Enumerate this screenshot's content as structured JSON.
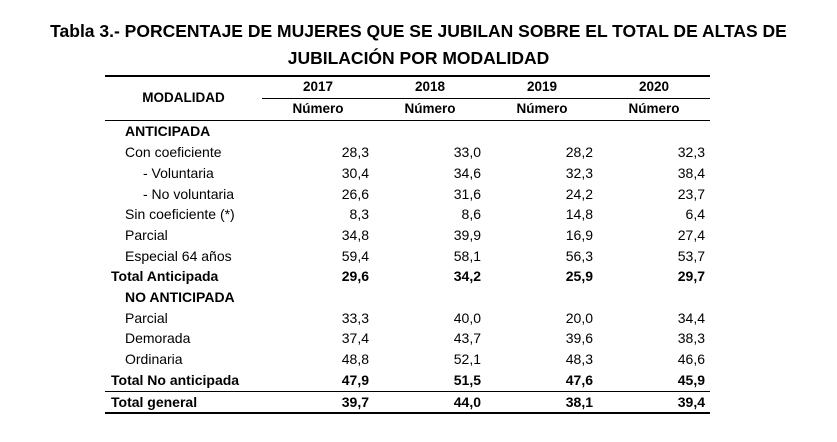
{
  "title_line1": "Tabla 3.- PORCENTAJE DE MUJERES QUE SE JUBILAN SOBRE EL TOTAL DE ALTAS DE",
  "title_line2": "JUBILACIÓN POR MODALIDAD",
  "header": {
    "modalidad": "MODALIDAD",
    "years": [
      "2017",
      "2018",
      "2019",
      "2020"
    ],
    "unit": "Número"
  },
  "rows": [
    {
      "label": "ANTICIPADA",
      "type": "section",
      "values": []
    },
    {
      "label": "Con coeficiente",
      "type": "i1",
      "values": [
        "28,3",
        "33,0",
        "28,2",
        "32,3"
      ]
    },
    {
      "label": "- Voluntaria",
      "type": "i2",
      "values": [
        "30,4",
        "34,6",
        "32,3",
        "38,4"
      ]
    },
    {
      "label": "- No voluntaria",
      "type": "i2",
      "values": [
        "26,6",
        "31,6",
        "24,2",
        "23,7"
      ]
    },
    {
      "label": "Sin coeficiente (*)",
      "type": "i1",
      "values": [
        "8,3",
        "8,6",
        "14,8",
        "6,4"
      ]
    },
    {
      "label": "Parcial",
      "type": "i1",
      "values": [
        "34,8",
        "39,9",
        "16,9",
        "27,4"
      ]
    },
    {
      "label": "Especial 64 años",
      "type": "i1",
      "values": [
        "59,4",
        "58,1",
        "56,3",
        "53,7"
      ]
    },
    {
      "label": "Total Anticipada",
      "type": "total",
      "values": [
        "29,6",
        "34,2",
        "25,9",
        "29,7"
      ]
    },
    {
      "label": "NO ANTICIPADA",
      "type": "section",
      "values": []
    },
    {
      "label": "Parcial",
      "type": "i1",
      "values": [
        "33,3",
        "40,0",
        "20,0",
        "34,4"
      ]
    },
    {
      "label": "Demorada",
      "type": "i1",
      "values": [
        "37,4",
        "43,7",
        "39,6",
        "38,3"
      ]
    },
    {
      "label": "Ordinaria",
      "type": "i1",
      "values": [
        "48,8",
        "52,1",
        "48,3",
        "46,6"
      ]
    },
    {
      "label": "Total No anticipada",
      "type": "total-line",
      "values": [
        "47,9",
        "51,5",
        "47,6",
        "45,9"
      ]
    },
    {
      "label": "Total general",
      "type": "general",
      "values": [
        "39,7",
        "44,0",
        "38,1",
        "39,4"
      ]
    }
  ]
}
